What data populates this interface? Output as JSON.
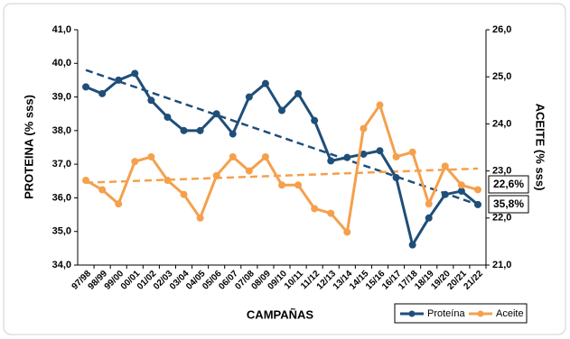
{
  "chart_data": {
    "type": "line",
    "categories": [
      "97/98",
      "98/99",
      "99/00",
      "00/01",
      "01/02",
      "02/03",
      "03/04",
      "04/05",
      "05/06",
      "06/07",
      "07/08",
      "08/09",
      "09/10",
      "10/11",
      "11/12",
      "12/13",
      "13/14",
      "14/15",
      "15/16",
      "16/17",
      "17/18",
      "18/19",
      "19/20",
      "20/21",
      "21/22"
    ],
    "series": [
      {
        "name": "Proteína",
        "color": "#1f4e79",
        "axis": "y",
        "values": [
          39.3,
          39.1,
          39.5,
          39.7,
          38.9,
          38.4,
          38.0,
          38.0,
          38.5,
          37.9,
          39.0,
          39.4,
          38.6,
          39.1,
          38.3,
          37.1,
          37.2,
          37.3,
          37.4,
          36.6,
          34.6,
          35.4,
          36.1,
          36.2,
          35.8
        ]
      },
      {
        "name": "Aceite",
        "color": "#f5a04c",
        "axis": "y2",
        "values": [
          22.8,
          22.6,
          22.3,
          23.2,
          23.3,
          22.8,
          22.5,
          22.0,
          22.9,
          23.3,
          23.0,
          23.3,
          22.7,
          22.7,
          22.2,
          22.1,
          21.7,
          23.9,
          24.4,
          23.3,
          23.4,
          22.3,
          23.1,
          22.7,
          22.6
        ]
      }
    ],
    "trendlines": [
      {
        "color": "#1f4e79",
        "axis": "y",
        "values": [
          39.8,
          35.8
        ]
      },
      {
        "color": "#f5a04c",
        "axis": "y2",
        "values": [
          22.75,
          23.05
        ]
      }
    ],
    "xlabel": "CAMPAÑAS",
    "ylabel": "PROTEINA (% sss)",
    "y2label": "ACEITE (% sss)",
    "ylim": [
      34,
      41
    ],
    "yticks": [
      {
        "value": 34,
        "label": "34,0"
      },
      {
        "value": 35,
        "label": "35,0"
      },
      {
        "value": 36,
        "label": "36,0"
      },
      {
        "value": 37,
        "label": "37,0"
      },
      {
        "value": 38,
        "label": "38,0"
      },
      {
        "value": 39,
        "label": "39,0"
      },
      {
        "value": 40,
        "label": "40,0"
      },
      {
        "value": 41,
        "label": "41,0"
      }
    ],
    "y2lim": [
      21,
      26
    ],
    "y2ticks": [
      {
        "value": 21,
        "label": "21,0"
      },
      {
        "value": 22,
        "label": "22,0"
      },
      {
        "value": 23,
        "label": "23,0"
      },
      {
        "value": 24,
        "label": "24,0"
      },
      {
        "value": 25,
        "label": "25,0"
      },
      {
        "value": 26,
        "label": "26,0"
      }
    ],
    "annotations": [
      "22,6%",
      "35,8%"
    ],
    "legend": "bottom-right"
  }
}
